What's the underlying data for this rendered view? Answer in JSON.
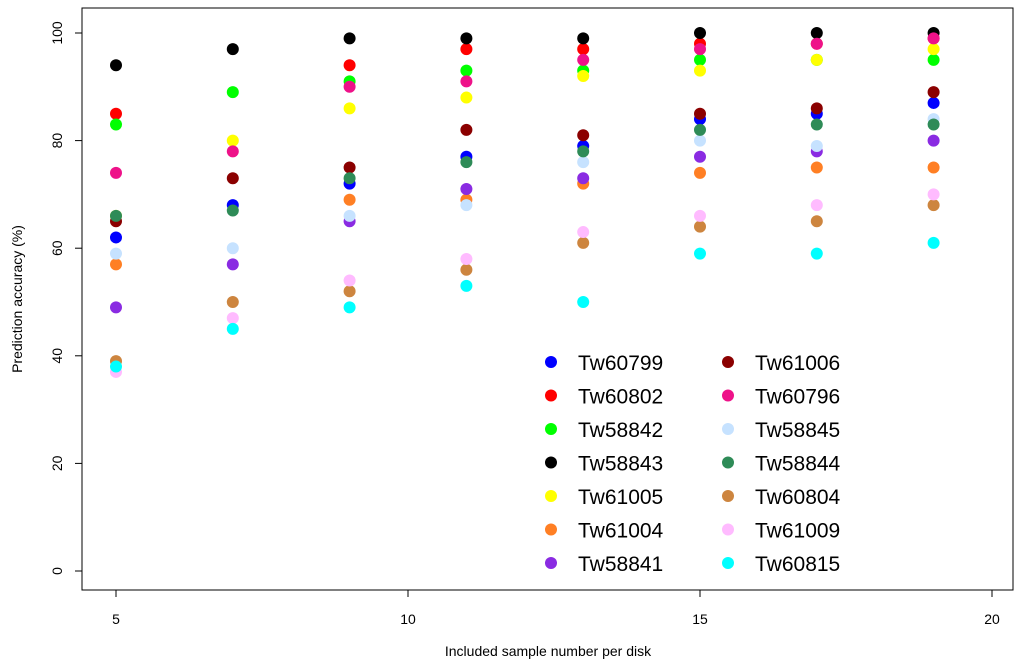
{
  "chart_data": {
    "type": "scatter",
    "title": "",
    "xlabel": "Included sample number per disk",
    "ylabel": "Prediction accuracy (%)",
    "xlim": [
      4.5,
      20.5
    ],
    "ylim": [
      -2,
      102
    ],
    "xticks": [
      5,
      10,
      15,
      20
    ],
    "yticks": [
      0,
      20,
      40,
      60,
      80,
      100
    ],
    "grid": false,
    "legend_position": "bottom-right",
    "x": [
      5,
      7,
      9,
      11,
      13,
      15,
      17,
      19
    ],
    "series": [
      {
        "name": "Tw60799",
        "color": "#0000FF",
        "values": [
          62,
          68,
          72,
          77,
          79,
          84,
          85,
          87
        ]
      },
      {
        "name": "Tw60802",
        "color": "#FF0000",
        "values": [
          85,
          null,
          94,
          97,
          97,
          98,
          98,
          99
        ]
      },
      {
        "name": "Tw58842",
        "color": "#00FF00",
        "values": [
          83,
          89,
          91,
          93,
          93,
          95,
          95,
          95
        ]
      },
      {
        "name": "Tw58843",
        "color": "#000000",
        "values": [
          94,
          97,
          99,
          99,
          99,
          100,
          100,
          100
        ]
      },
      {
        "name": "Tw61005",
        "color": "#FFFF00",
        "values": [
          66,
          80,
          86,
          88,
          92,
          93,
          95,
          97
        ]
      },
      {
        "name": "Tw61004",
        "color": "#FF7F24",
        "values": [
          57,
          null,
          69,
          69,
          72,
          74,
          75,
          75
        ]
      },
      {
        "name": "Tw58841",
        "color": "#8A2BE2",
        "values": [
          49,
          57,
          65,
          71,
          73,
          77,
          78,
          80
        ]
      },
      {
        "name": "Tw61006",
        "color": "#8B0000",
        "values": [
          65,
          73,
          75,
          82,
          81,
          85,
          86,
          89
        ]
      },
      {
        "name": "Tw60796",
        "color": "#EE1289",
        "values": [
          74,
          78,
          90,
          91,
          95,
          97,
          98,
          99
        ]
      },
      {
        "name": "Tw58845",
        "color": "#C6E2FF",
        "values": [
          59,
          60,
          66,
          68,
          76,
          80,
          79,
          84
        ]
      },
      {
        "name": "Tw58844",
        "color": "#2E8B57",
        "values": [
          66,
          67,
          73,
          76,
          78,
          82,
          83,
          83
        ]
      },
      {
        "name": "Tw60804",
        "color": "#CD853F",
        "values": [
          39,
          50,
          52,
          56,
          61,
          64,
          65,
          68
        ]
      },
      {
        "name": "Tw61009",
        "color": "#FFBBFF",
        "values": [
          37,
          47,
          54,
          58,
          63,
          66,
          68,
          70
        ]
      },
      {
        "name": "Tw60815",
        "color": "#00FFFF",
        "values": [
          38,
          45,
          49,
          53,
          50,
          59,
          59,
          61
        ]
      }
    ]
  }
}
